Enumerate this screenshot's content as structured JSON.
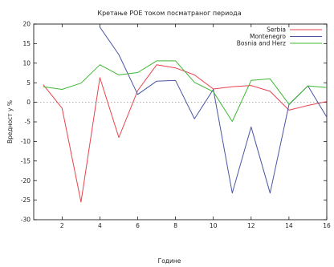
{
  "chart_data": {
    "type": "line",
    "title": "Кретање РОЕ током посматраног периода",
    "xlabel": "Године",
    "ylabel": "Вредност  у %",
    "xlim": [
      0.5,
      16
    ],
    "ylim": [
      -30,
      20
    ],
    "xticks": [
      2,
      4,
      6,
      8,
      10,
      12,
      14,
      16
    ],
    "yticks": [
      -30,
      -25,
      -20,
      -15,
      -10,
      -5,
      0,
      5,
      10,
      15,
      20
    ],
    "zero_line": "dashed",
    "legend_position": "top-right",
    "series": [
      {
        "name": "Serbia",
        "color": "#e8434b",
        "x": [
          1,
          2,
          3,
          4,
          5,
          6,
          7,
          8,
          9,
          10,
          11,
          12,
          13,
          14,
          15,
          16
        ],
        "y": [
          4.5,
          -1.5,
          -25.5,
          6.3,
          -9.0,
          3.0,
          9.6,
          8.8,
          7.0,
          3.4,
          4.0,
          4.3,
          2.8,
          -2.0,
          -0.8,
          0.2
        ]
      },
      {
        "name": "Montenegro",
        "color": "#4b55a3",
        "x": [
          4,
          5,
          6,
          7,
          8,
          9,
          10,
          11,
          12,
          13,
          14,
          15,
          16
        ],
        "y": [
          19.2,
          12.2,
          2.0,
          5.4,
          5.6,
          -4.2,
          3.3,
          -23.2,
          -6.3,
          -23.2,
          -0.6,
          4.2,
          -3.8
        ]
      },
      {
        "name": "Bosnia and Herz",
        "color": "#3cb832",
        "x": [
          1,
          2,
          3,
          4,
          5,
          6,
          7,
          8,
          9,
          10,
          11,
          12,
          13,
          14,
          15,
          16
        ],
        "y": [
          4.0,
          3.3,
          4.9,
          9.6,
          7.0,
          7.6,
          10.6,
          10.6,
          5.1,
          2.7,
          -4.9,
          5.6,
          6.0,
          -0.5,
          4.2,
          3.8
        ]
      }
    ]
  }
}
